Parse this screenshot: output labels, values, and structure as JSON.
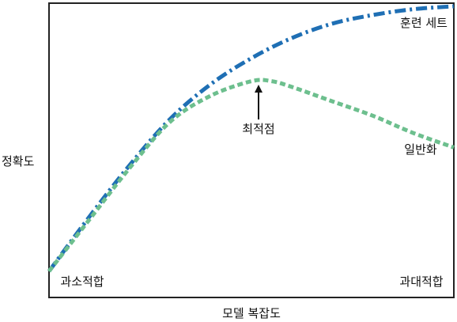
{
  "chart_data": {
    "type": "line",
    "title": "",
    "xlabel": "모델 복잡도",
    "ylabel": "정확도",
    "xlim": [
      0,
      1
    ],
    "ylim": [
      0,
      1
    ],
    "grid": false,
    "series": [
      {
        "name": "훈련 세트",
        "color": "#1f6fb4",
        "style": "dash-dot",
        "x": [
          0.0,
          0.1,
          0.2,
          0.3,
          0.4,
          0.5,
          0.6,
          0.7,
          0.8,
          0.9,
          1.0
        ],
        "y": [
          0.08,
          0.27,
          0.45,
          0.61,
          0.73,
          0.82,
          0.89,
          0.94,
          0.97,
          0.99,
          1.0
        ]
      },
      {
        "name": "일반화",
        "color": "#6dbf8e",
        "style": "dashed",
        "x": [
          0.0,
          0.1,
          0.2,
          0.3,
          0.4,
          0.5,
          0.55,
          0.6,
          0.7,
          0.8,
          0.9,
          1.0
        ],
        "y": [
          0.08,
          0.26,
          0.44,
          0.6,
          0.69,
          0.74,
          0.74,
          0.72,
          0.67,
          0.62,
          0.56,
          0.51
        ]
      }
    ],
    "annotations": [
      {
        "text": "최적점",
        "x": 0.5,
        "y": 0.74,
        "arrow": true
      }
    ],
    "region_labels": {
      "left": "과소적합",
      "right": "과대적합"
    }
  }
}
